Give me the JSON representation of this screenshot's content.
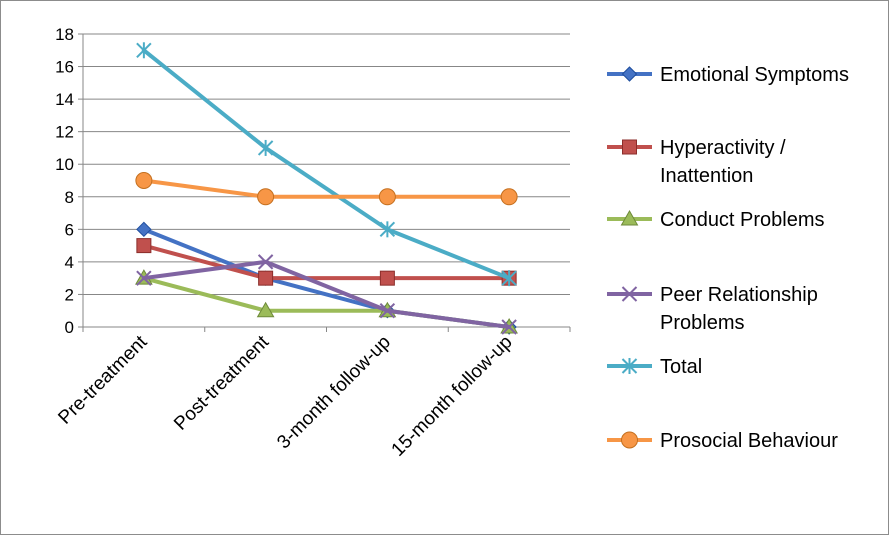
{
  "chart_data": {
    "type": "line",
    "categories": [
      "Pre-treatment",
      "Post-treatment",
      "3-month follow-up",
      "15-month follow-up"
    ],
    "ylim": [
      0,
      18
    ],
    "yticks": [
      0,
      2,
      4,
      6,
      8,
      10,
      12,
      14,
      16,
      18
    ],
    "grid": true,
    "legend_position": "right",
    "series": [
      {
        "name": "Emotional Symptoms",
        "values": [
          6,
          3,
          1,
          0
        ],
        "color": "#4472C4",
        "marker": "diamond"
      },
      {
        "name": "Hyperactivity / Inattention",
        "values": [
          5,
          3,
          3,
          3
        ],
        "color": "#C0504D",
        "marker": "square"
      },
      {
        "name": "Conduct Problems",
        "values": [
          3,
          1,
          1,
          0
        ],
        "color": "#9BBB59",
        "marker": "triangle"
      },
      {
        "name": "Peer Relationship Problems",
        "values": [
          3,
          4,
          1,
          0
        ],
        "color": "#8064A2",
        "marker": "star"
      },
      {
        "name": "Total",
        "values": [
          17,
          11,
          6,
          3
        ],
        "color": "#4BACC6",
        "marker": "asterisk"
      },
      {
        "name": "Prosocial Behaviour",
        "values": [
          9,
          8,
          8,
          8
        ],
        "color": "#F79646",
        "marker": "circle"
      }
    ]
  }
}
